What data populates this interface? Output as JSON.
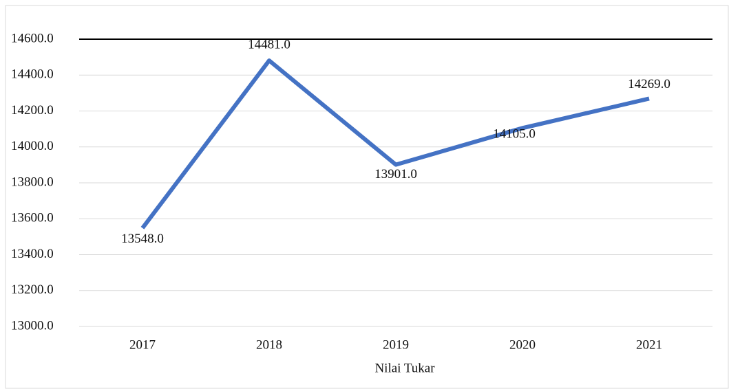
{
  "chart_data": {
    "type": "line",
    "x_label": "Nilai Tukar",
    "categories": [
      "2017",
      "2018",
      "2019",
      "2020",
      "2021"
    ],
    "series": [
      {
        "name": "Nilai Tukar",
        "color": "#4472c4",
        "values": [
          13548,
          14481,
          13901,
          14105,
          14269
        ],
        "value_labels": [
          "13548.0",
          "14481.0",
          "13901.0",
          "14105.0",
          "14269.0"
        ]
      }
    ],
    "ylim": [
      13000,
      14600
    ],
    "yticks": [
      {
        "value": 13000,
        "label": "13000.0"
      },
      {
        "value": 13200,
        "label": "13200.0"
      },
      {
        "value": 13400,
        "label": "13400.0"
      },
      {
        "value": 13600,
        "label": "13600.0"
      },
      {
        "value": 13800,
        "label": "13800.0"
      },
      {
        "value": 14000,
        "label": "14000.0"
      },
      {
        "value": 14200,
        "label": "14200.0"
      },
      {
        "value": 14400,
        "label": "14400.0"
      },
      {
        "value": 14600,
        "label": "14600.0"
      }
    ],
    "grid": true
  }
}
